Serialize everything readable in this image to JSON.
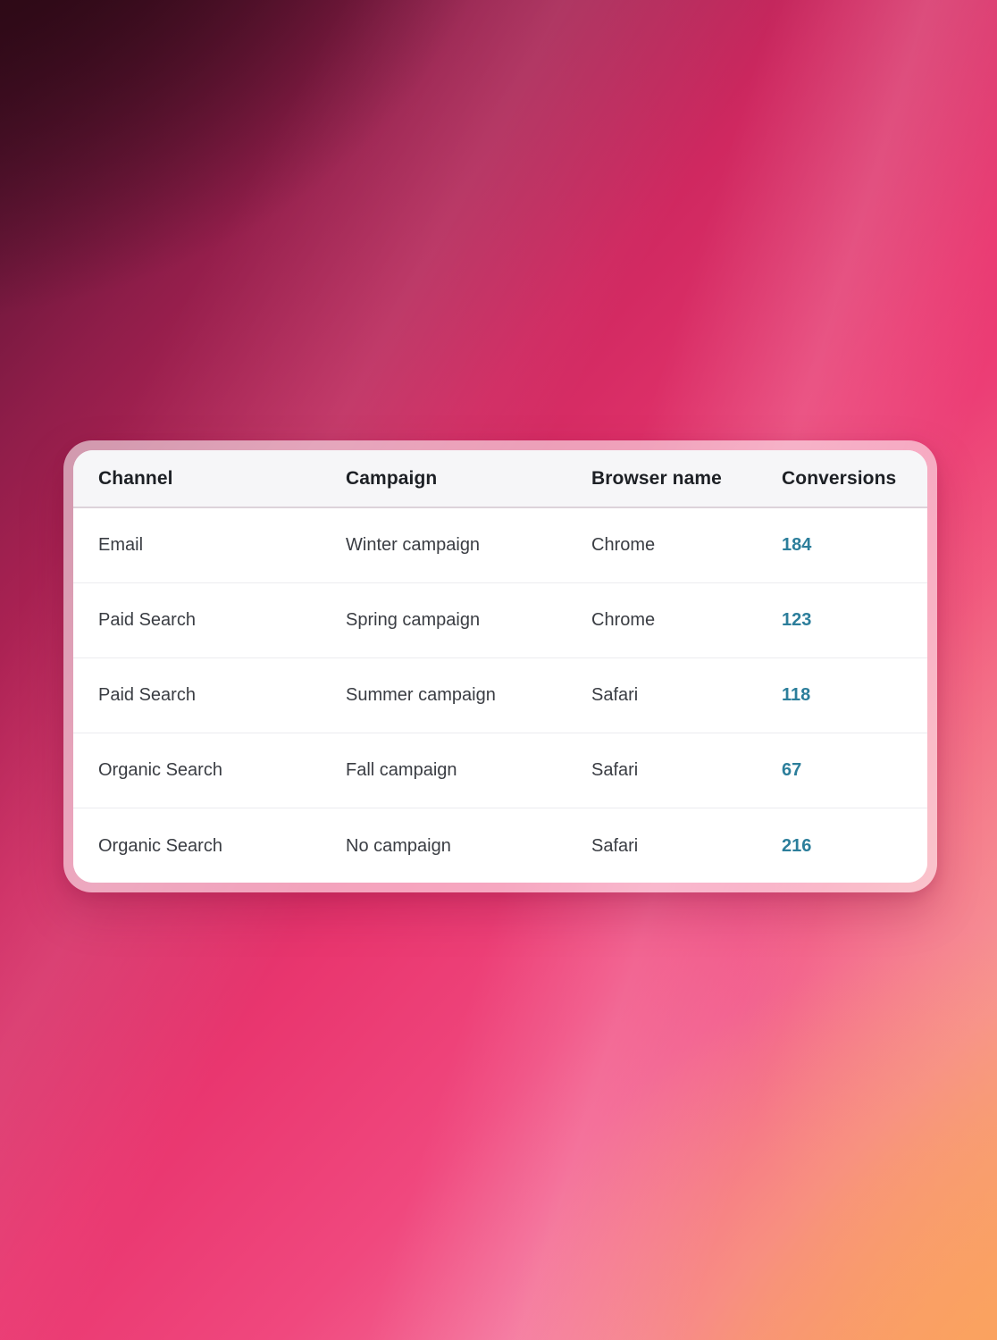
{
  "header": {
    "channel": "Channel",
    "campaign": "Campaign",
    "browser": "Browser name",
    "conversions": "Conversions"
  },
  "table": {
    "rows": [
      {
        "channel": "Email",
        "campaign": "Winter campaign",
        "browser": "Chrome",
        "conversions": "184"
      },
      {
        "channel": "Paid Search",
        "campaign": "Spring campaign",
        "browser": "Chrome",
        "conversions": "123"
      },
      {
        "channel": "Paid Search",
        "campaign": "Summer campaign",
        "browser": "Safari",
        "conversions": "118"
      },
      {
        "channel": "Organic Search",
        "campaign": "Fall campaign",
        "browser": "Safari",
        "conversions": "67"
      },
      {
        "channel": "Organic Search",
        "campaign": "No campaign",
        "browser": "Safari",
        "conversions": "216"
      }
    ]
  },
  "colors": {
    "conversions_link": "#2c7e9b",
    "header_background": "#f6f6f8",
    "header_text": "#1d2025",
    "cell_text": "#3a3d43",
    "row_divider": "#ececf0",
    "header_divider": "#ddd3da",
    "card_ring": "rgba(255,255,255,0.55)",
    "background_dark_corner": "#2c0915",
    "background_pink": "#e8336d",
    "background_orange_corner": "#faa25c"
  }
}
